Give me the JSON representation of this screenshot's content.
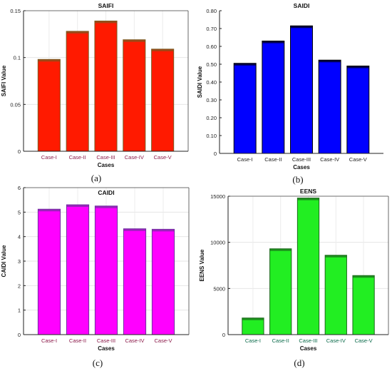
{
  "panels": [
    {
      "caption": "(a)"
    },
    {
      "caption": "(b)"
    },
    {
      "caption": "(c)"
    },
    {
      "caption": "(d)"
    }
  ],
  "chart_data": [
    {
      "type": "bar",
      "title": "SAIFI",
      "xlabel": "Cases",
      "ylabel": "SAIFI Value",
      "categories": [
        "Case-I",
        "Case-II",
        "Case-III",
        "Case-IV",
        "Case-V"
      ],
      "values": [
        0.098,
        0.128,
        0.139,
        0.119,
        0.109
      ],
      "ylim": [
        0,
        0.15
      ],
      "yticks": [
        0,
        0.05,
        0.1,
        0.15
      ],
      "ytick_labels": [
        "0",
        "0.05",
        "0.1",
        "0.15"
      ],
      "bar_color": "#ff1a00",
      "edge_color": "#7a5a20",
      "tick_label_color": "#8b1a4a",
      "grid": true,
      "box": true
    },
    {
      "type": "bar",
      "title": "SAIDI",
      "xlabel": "Cases",
      "ylabel": "SAIDI Value",
      "categories": [
        "Case-I",
        "Case-II",
        "Case-III",
        "Case-IV",
        "Case-V"
      ],
      "values": [
        0.505,
        0.63,
        0.715,
        0.523,
        0.49
      ],
      "ylim": [
        0,
        0.8
      ],
      "yticks": [
        0,
        0.1,
        0.2,
        0.3,
        0.4,
        0.5,
        0.6,
        0.7,
        0.8
      ],
      "ytick_labels": [
        "0",
        "0.10",
        "0.20",
        "0.30",
        "0.40",
        "0.50",
        "0.60",
        "0.70",
        "0.80"
      ],
      "bar_color": "#0000ff",
      "edge_color": "#000000",
      "tick_label_color": "#222222",
      "grid": false,
      "box": false
    },
    {
      "type": "bar",
      "title": "CAIDI",
      "xlabel": "Cases",
      "ylabel": "CAIDI Value",
      "categories": [
        "Case-I",
        "Case-II",
        "Case-III",
        "Case-IV",
        "Case-V"
      ],
      "values": [
        5.12,
        5.3,
        5.25,
        4.32,
        4.3
      ],
      "ylim": [
        0,
        6
      ],
      "yticks": [
        0,
        1,
        2,
        3,
        4,
        5,
        6
      ],
      "ytick_labels": [
        "0",
        "1",
        "2",
        "3",
        "4",
        "5",
        "6"
      ],
      "bar_color": "#ff00ff",
      "edge_color": "#7030a0",
      "tick_label_color": "#8b1a4a",
      "grid": true,
      "box": true
    },
    {
      "type": "bar",
      "title": "EENS",
      "xlabel": "Cases",
      "ylabel": "EENS Value",
      "categories": [
        "Case-I",
        "Case-II",
        "Case-III",
        "Case-IV",
        "Case-V"
      ],
      "values": [
        1800,
        9300,
        14800,
        8600,
        6400
      ],
      "ylim": [
        0,
        15000
      ],
      "yticks": [
        0,
        5000,
        10000,
        15000
      ],
      "ytick_labels": [
        "0",
        "5000",
        "10000",
        "15000"
      ],
      "bar_color": "#22ee22",
      "edge_color": "#1a6a1a",
      "tick_label_color": "#0a6a4a",
      "grid": true,
      "box": true
    }
  ]
}
